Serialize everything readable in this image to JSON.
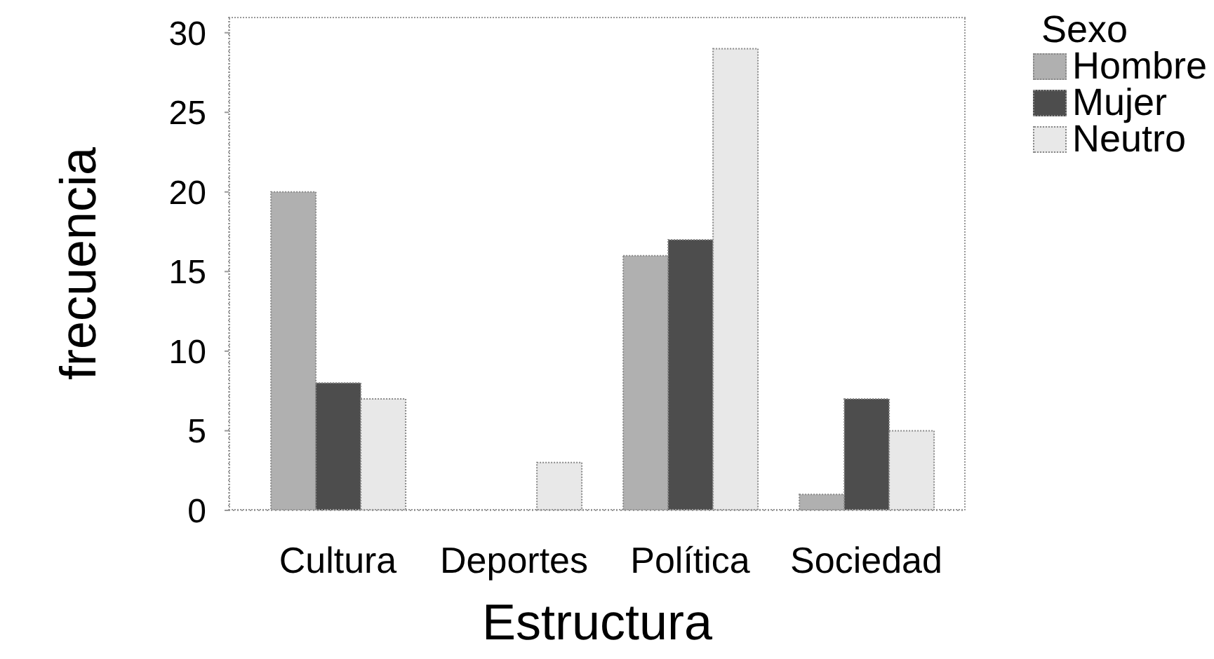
{
  "chart_data": {
    "type": "bar",
    "xlabel": "Estructura",
    "ylabel": "frecuencia",
    "legend_title": "Sexo",
    "categories": [
      "Cultura",
      "Deportes",
      "Política",
      "Sociedad"
    ],
    "series": [
      {
        "name": "Hombre",
        "color": "#b0b0b0",
        "values": [
          20,
          0,
          16,
          1
        ]
      },
      {
        "name": "Mujer",
        "color": "#4d4d4d",
        "values": [
          8,
          0,
          17,
          7
        ]
      },
      {
        "name": "Neutro",
        "color": "#e8e8e8",
        "values": [
          7,
          3,
          29,
          5
        ]
      }
    ],
    "ylim": [
      0,
      31
    ],
    "yticks": [
      0,
      5,
      10,
      15,
      20,
      25,
      30
    ],
    "grid": false,
    "legend": "top right"
  }
}
